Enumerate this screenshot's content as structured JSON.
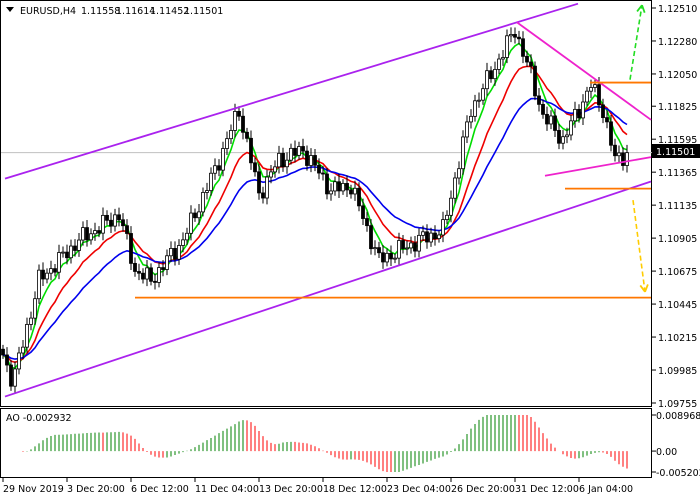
{
  "header": {
    "symbol": "EURUSD,H4",
    "open": "1.11558",
    "high": "1.11614",
    "low": "1.11452",
    "close": "1.11501"
  },
  "current_price": "1.11501",
  "chart_data": {
    "type": "candlestick",
    "symbol": "EURUSD",
    "timeframe": "H4",
    "ylim": [
      1.09755,
      1.1251
    ],
    "y_ticks": [
      "1.12510",
      "1.12280",
      "1.12050",
      "1.11825",
      "1.11595",
      "1.11365",
      "1.11135",
      "1.10905",
      "1.10675",
      "1.10445",
      "1.10215",
      "1.09985",
      "1.09755"
    ],
    "bar_count": 157,
    "close_path": [
      [
        0,
        1.1009
      ],
      [
        2.5,
        1.099
      ],
      [
        9,
        1.1061
      ],
      [
        19,
        1.1089
      ],
      [
        29,
        1.1107
      ],
      [
        33,
        1.1068
      ],
      [
        37,
        1.1061
      ],
      [
        45,
        1.1089
      ],
      [
        53,
        1.1138
      ],
      [
        59,
        1.118
      ],
      [
        64,
        1.1121
      ],
      [
        69,
        1.1145
      ],
      [
        75,
        1.1152
      ],
      [
        82,
        1.1124
      ],
      [
        87,
        1.1127
      ],
      [
        94,
        1.1075
      ],
      [
        104,
        1.1089
      ],
      [
        110,
        1.1096
      ],
      [
        117,
        1.118
      ],
      [
        124,
        1.1215
      ],
      [
        128,
        1.1236
      ],
      [
        132,
        1.1204
      ],
      [
        135,
        1.1176
      ],
      [
        140,
        1.1159
      ],
      [
        147,
        1.1197
      ],
      [
        150,
        1.118
      ],
      [
        153,
        1.1145
      ],
      [
        156,
        1.11501
      ]
    ],
    "x_ticks": [
      {
        "bar": 0,
        "label": "29 Nov 2019"
      },
      {
        "bar": 16,
        "label": "3 Dec 20:00"
      },
      {
        "bar": 32,
        "label": "6 Dec 12:00"
      },
      {
        "bar": 48,
        "label": "11 Dec 04:00"
      },
      {
        "bar": 64,
        "label": "13 Dec 20:00"
      },
      {
        "bar": 80,
        "label": "18 Dec 12:00"
      },
      {
        "bar": 96,
        "label": "23 Dec 04:00"
      },
      {
        "bar": 112,
        "label": "26 Dec 20:00"
      },
      {
        "bar": 128,
        "label": "31 Dec 12:00"
      },
      {
        "bar": 144,
        "label": "6 Jan 04:00"
      }
    ],
    "moving_averages": [
      {
        "name": "fast",
        "period": 5,
        "color": "#00dd00"
      },
      {
        "name": "medium",
        "period": 12,
        "color": "#ee0000"
      },
      {
        "name": "slow",
        "period": 24,
        "color": "#0000ee"
      }
    ],
    "drawings": [
      {
        "name": "channel-upper",
        "color": "#aa22ee",
        "from": [
          0.5,
          1.1132
        ],
        "to": [
          143.75,
          1.1254
        ],
        "dash": false
      },
      {
        "name": "channel-lower",
        "color": "#aa22ee",
        "from": [
          0.5,
          1.098
        ],
        "to": [
          162,
          1.113
        ],
        "dash": false
      },
      {
        "name": "resistance-trend",
        "color": "#ee22cc",
        "from": [
          128.5,
          1.1241
        ],
        "to": [
          162,
          1.1173
        ],
        "dash": false
      },
      {
        "name": "support-trend",
        "color": "#ee22cc",
        "from": [
          135.5,
          1.1134
        ],
        "to": [
          162,
          1.1147
        ],
        "dash": false
      },
      {
        "name": "resistance-level",
        "color": "#ff7700",
        "from": [
          146.75,
          1.1199
        ],
        "to": [
          162,
          1.1199
        ],
        "dash": false
      },
      {
        "name": "support-level",
        "color": "#ff7700",
        "from": [
          140.5,
          1.1125
        ],
        "to": [
          162,
          1.1125
        ],
        "dash": false
      },
      {
        "name": "support-level-low",
        "color": "#ff7700",
        "from": [
          33,
          1.1049
        ],
        "to": [
          162,
          1.1049
        ],
        "dash": false
      },
      {
        "name": "bullish-arrow",
        "color": "#22dd22",
        "from": [
          156.75,
          1.1201
        ],
        "to": [
          159.75,
          1.1253
        ],
        "dash": true
      },
      {
        "name": "bearish-arrow",
        "color": "#ffcc00",
        "from": [
          157.5,
          1.1117
        ],
        "to": [
          160.5,
          1.1053
        ],
        "dash": true
      }
    ],
    "indicator": {
      "name": "AO",
      "value": "-0.002932",
      "ylim": [
        -0.005202,
        0.008968
      ],
      "y_ticks": [
        "0.008968",
        "0.00",
        "-0.005202"
      ],
      "up_color": "#008000",
      "down_color": "#ff0000"
    }
  }
}
